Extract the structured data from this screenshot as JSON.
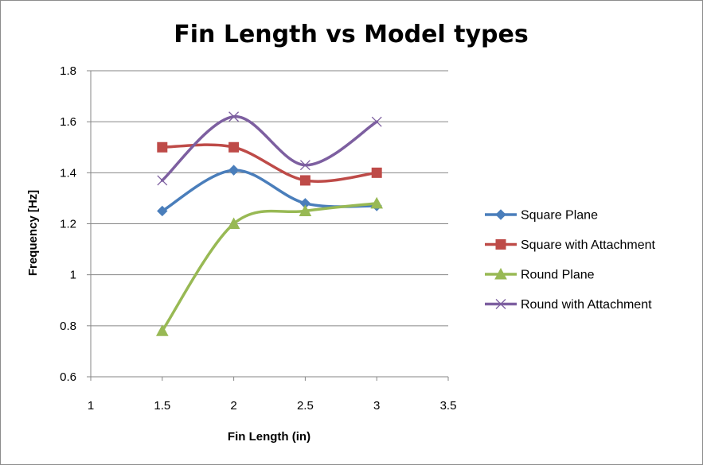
{
  "chart_data": {
    "type": "line",
    "title": "Fin Length vs Model types",
    "xlabel": "Fin Length (in)",
    "ylabel": "Frequency  [Hz]",
    "xlim": [
      1,
      3.5
    ],
    "ylim": [
      0.6,
      1.8
    ],
    "x_ticks": [
      "1",
      "1.5",
      "2",
      "2.5",
      "3",
      "3.5"
    ],
    "y_ticks": [
      "0.6",
      "0.8",
      "1",
      "1.2",
      "1.4",
      "1.6",
      "1.8"
    ],
    "grid": {
      "horizontal": true,
      "vertical": false
    },
    "smooth": true,
    "legend_position": "right",
    "series": [
      {
        "name": "Square Plane",
        "color": "#4a7ebb",
        "marker": "diamond",
        "x": [
          1.5,
          2,
          2.5,
          3
        ],
        "y": [
          1.25,
          1.41,
          1.28,
          1.27
        ]
      },
      {
        "name": "Square with Attachment",
        "color": "#be4b48",
        "marker": "square",
        "x": [
          1.5,
          2,
          2.5,
          3
        ],
        "y": [
          1.5,
          1.5,
          1.37,
          1.4
        ]
      },
      {
        "name": "Round Plane",
        "color": "#98b954",
        "marker": "triangle",
        "x": [
          1.5,
          2,
          2.5,
          3
        ],
        "y": [
          0.78,
          1.2,
          1.25,
          1.28
        ]
      },
      {
        "name": "Round with Attachment",
        "color": "#7d5fa0",
        "marker": "x",
        "x": [
          1.5,
          2,
          2.5,
          3
        ],
        "y": [
          1.37,
          1.62,
          1.43,
          1.6
        ]
      }
    ]
  }
}
